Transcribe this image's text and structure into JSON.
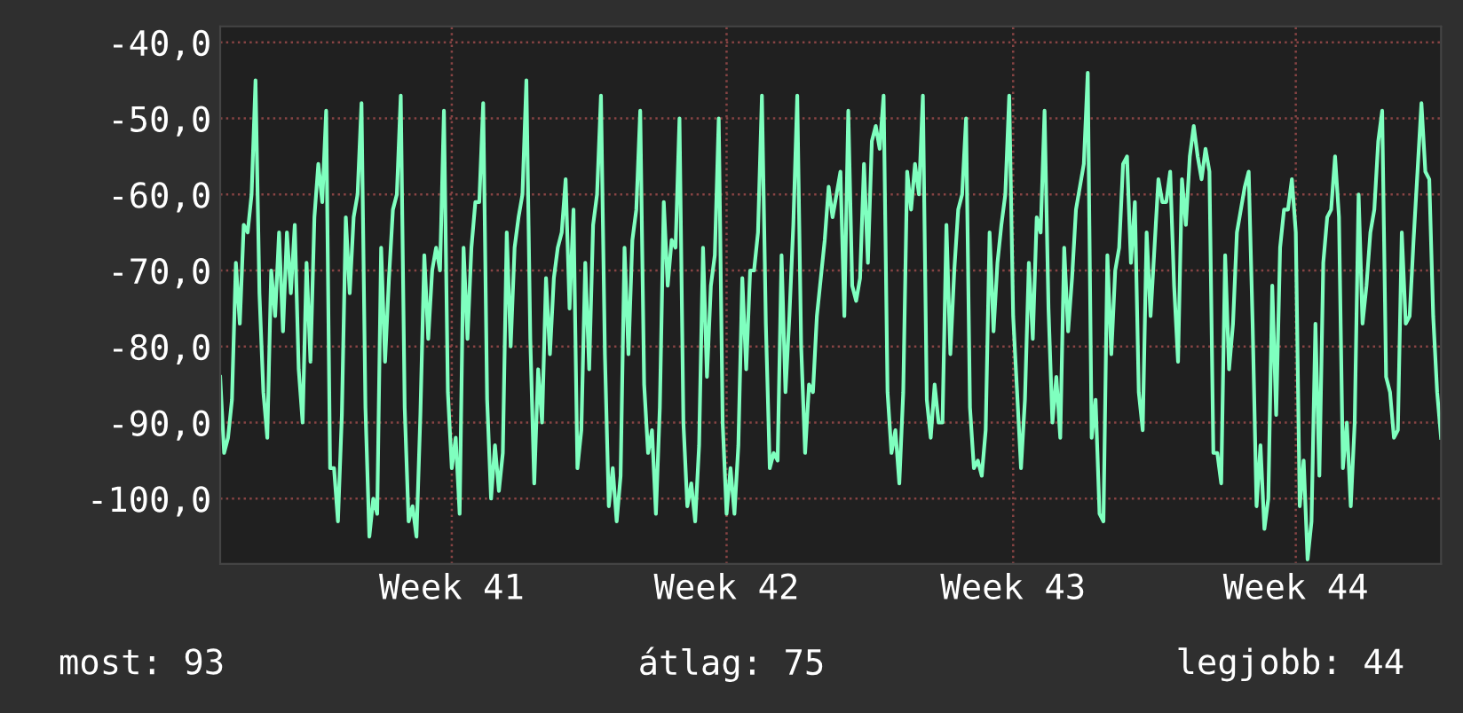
{
  "chart_data": {
    "type": "line",
    "series": [
      {
        "color": "#7fffbf",
        "values": [
          -84,
          -94,
          -92,
          -87,
          -69,
          -77,
          -64,
          -65,
          -60,
          -45,
          -73,
          -86,
          -92,
          -70,
          -76,
          -65,
          -78,
          -65,
          -73,
          -64,
          -83,
          -90,
          -69,
          -82,
          -63,
          -56,
          -61,
          -49,
          -96,
          -96,
          -103,
          -89,
          -63,
          -73,
          -63,
          -60,
          -48,
          -88,
          -105,
          -100,
          -102,
          -67,
          -82,
          -71,
          -62,
          -60,
          -47,
          -88,
          -103,
          -101,
          -105,
          -89,
          -68,
          -79,
          -70,
          -67,
          -70,
          -49,
          -86,
          -96,
          -92,
          -102,
          -67,
          -79,
          -67,
          -61,
          -61,
          -48,
          -87,
          -100,
          -93,
          -99,
          -94,
          -65,
          -80,
          -67,
          -63,
          -60,
          -45,
          -79,
          -98,
          -83,
          -90,
          -71,
          -81,
          -71,
          -67,
          -65,
          -58,
          -75,
          -62,
          -96,
          -91,
          -69,
          -83,
          -64,
          -60,
          -47,
          -81,
          -101,
          -96,
          -103,
          -97,
          -67,
          -81,
          -66,
          -62,
          -49,
          -85,
          -94,
          -91,
          -102,
          -88,
          -61,
          -72,
          -66,
          -67,
          -50,
          -90,
          -101,
          -98,
          -103,
          -93,
          -67,
          -84,
          -72,
          -68,
          -50,
          -90,
          -102,
          -96,
          -102,
          -93,
          -71,
          -83,
          -70,
          -70,
          -65,
          -47,
          -77,
          -96,
          -94,
          -95,
          -68,
          -86,
          -76,
          -64,
          -47,
          -80,
          -94,
          -85,
          -86,
          -76,
          -71,
          -66,
          -59,
          -63,
          -60,
          -57,
          -76,
          -49,
          -72,
          -74,
          -71,
          -56,
          -69,
          -53,
          -51,
          -54,
          -47,
          -86,
          -94,
          -91,
          -98,
          -86,
          -57,
          -62,
          -56,
          -60,
          -47,
          -87,
          -92,
          -85,
          -90,
          -90,
          -64,
          -81,
          -70,
          -62,
          -60,
          -50,
          -88,
          -96,
          -95,
          -97,
          -91,
          -65,
          -78,
          -69,
          -64,
          -60,
          -47,
          -76,
          -86,
          -96,
          -87,
          -69,
          -79,
          -63,
          -65,
          -49,
          -75,
          -90,
          -84,
          -92,
          -67,
          -78,
          -71,
          -62,
          -59,
          -56,
          -44,
          -92,
          -87,
          -102,
          -103,
          -68,
          -81,
          -70,
          -67,
          -56,
          -55,
          -69,
          -61,
          -86,
          -91,
          -65,
          -76,
          -67,
          -58,
          -61,
          -61,
          -57,
          -72,
          -82,
          -58,
          -64,
          -55,
          -51,
          -55,
          -58,
          -54,
          -57,
          -94,
          -94,
          -98,
          -68,
          -83,
          -77,
          -65,
          -62,
          -59,
          -57,
          -77,
          -101,
          -93,
          -104,
          -100,
          -72,
          -89,
          -67,
          -62,
          -62,
          -58,
          -65,
          -101,
          -95,
          -108,
          -103,
          -77,
          -97,
          -69,
          -63,
          -62,
          -55,
          -63,
          -96,
          -90,
          -101,
          -90,
          -60,
          -77,
          -72,
          -65,
          -62,
          -53,
          -49,
          -84,
          -86,
          -92,
          -91,
          -65,
          -77,
          -76,
          -66,
          -57,
          -48,
          -57,
          -58,
          -76,
          -86,
          -92
        ]
      }
    ],
    "categories": [
      null,
      null,
      null,
      null,
      null,
      null,
      null,
      null,
      null,
      null,
      null,
      null,
      null,
      null,
      null,
      null,
      null,
      null,
      null,
      null,
      null,
      null,
      null,
      null,
      null,
      null,
      null,
      null,
      null,
      null,
      null,
      null,
      null,
      null,
      null,
      null,
      null,
      null,
      null,
      null,
      null,
      null,
      null,
      null,
      null,
      null,
      null,
      null,
      null,
      null,
      null,
      null,
      null,
      null,
      null,
      null,
      null,
      null,
      null,
      "Week 41",
      null,
      null,
      null,
      null,
      null,
      null,
      null,
      null,
      null,
      null,
      null,
      null,
      null,
      null,
      null,
      null,
      null,
      null,
      null,
      null,
      null,
      null,
      null,
      null,
      null,
      null,
      null,
      null,
      null,
      null,
      null,
      null,
      null,
      null,
      null,
      null,
      null,
      null,
      null,
      null,
      null,
      null,
      null,
      null,
      null,
      null,
      null,
      null,
      null,
      null,
      null,
      null,
      null,
      null,
      null,
      null,
      null,
      null,
      null,
      null,
      null,
      null,
      null,
      null,
      null,
      null,
      null,
      null,
      null,
      "Week 42",
      null,
      null,
      null,
      null,
      null,
      null,
      null,
      null,
      null,
      null,
      null,
      null,
      null,
      null,
      null,
      null,
      null,
      null,
      null,
      null,
      null,
      null,
      null,
      null,
      null,
      null,
      null,
      null,
      null,
      null,
      null,
      null,
      null,
      null,
      null,
      null,
      null,
      null,
      null,
      null,
      null,
      null,
      null,
      null,
      null,
      null,
      null,
      null,
      null,
      null,
      null,
      null,
      null,
      null,
      null,
      null,
      null,
      null,
      null,
      null,
      null,
      null,
      null,
      null,
      null,
      null,
      null,
      null,
      null,
      null,
      null,
      null,
      "Week 43",
      null,
      null,
      null,
      null,
      null,
      null,
      null,
      null,
      null,
      null,
      null,
      null,
      null,
      null,
      null,
      null,
      null,
      null,
      null,
      null,
      null,
      null,
      null,
      null,
      null,
      null,
      null,
      null,
      null,
      null,
      null,
      null,
      null,
      null,
      null,
      null,
      null,
      null,
      null,
      null,
      null,
      null,
      null,
      null,
      null,
      null,
      null,
      null,
      null,
      null,
      null,
      null,
      null,
      null,
      null,
      null,
      null,
      null,
      null,
      null,
      null,
      null,
      null,
      null,
      null,
      null,
      null,
      null,
      null,
      null,
      null,
      "Week 44",
      null,
      null,
      null,
      null,
      null,
      null,
      null,
      null,
      null,
      null,
      null,
      null,
      null,
      null,
      null,
      null,
      null,
      null,
      null,
      null,
      null,
      null,
      null,
      null,
      null,
      null,
      null,
      null,
      null,
      null,
      null,
      null,
      null,
      null,
      null,
      null,
      null
    ],
    "ylim": [
      -108.6,
      -37.9
    ],
    "yticks": [
      {
        "value": -40,
        "label": "-40,0"
      },
      {
        "value": -50,
        "label": "-50,0"
      },
      {
        "value": -60,
        "label": "-60,0"
      },
      {
        "value": -70,
        "label": "-70,0"
      },
      {
        "value": -80,
        "label": "-80,0"
      },
      {
        "value": -90,
        "label": "-90,0"
      },
      {
        "value": -100,
        "label": "-100,0"
      }
    ],
    "grid": true,
    "annotations": [
      "most: 93",
      "átlag: 75",
      "legjobb: 44"
    ]
  }
}
